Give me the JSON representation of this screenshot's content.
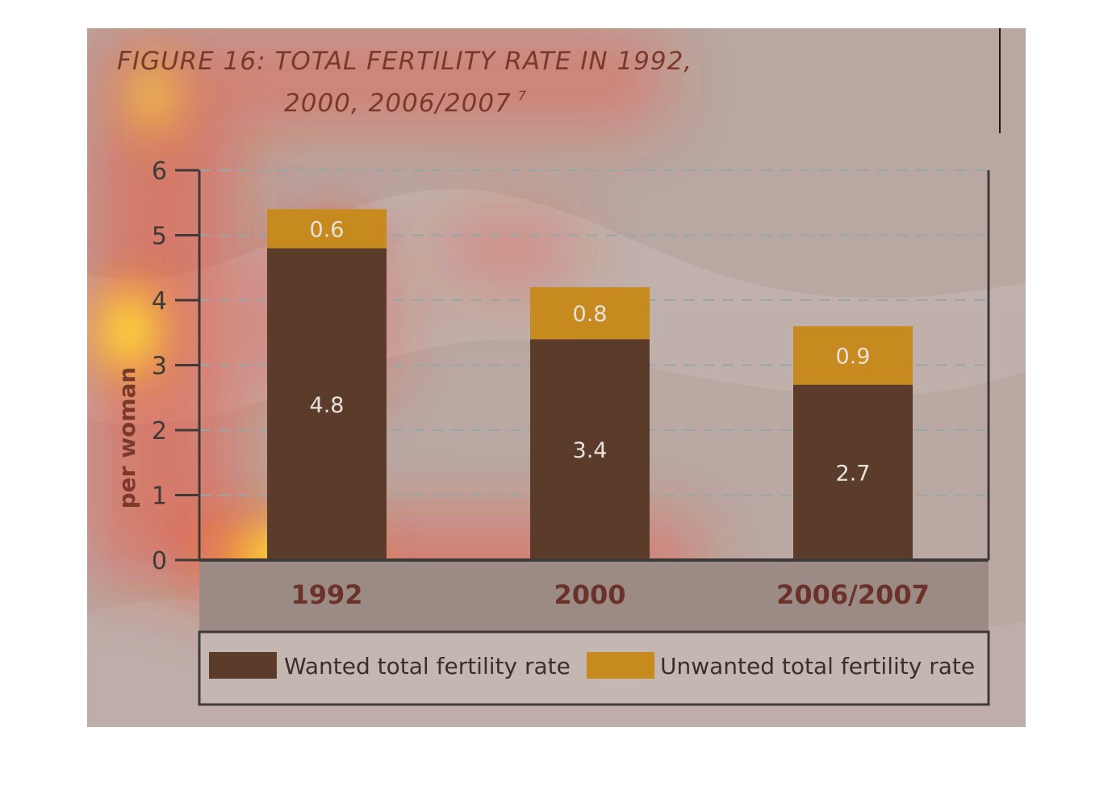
{
  "figure": {
    "title_line1": "FIGURE 16: TOTAL FERTILITY RATE IN 1992,",
    "title_line2": "2000, 2006/2007",
    "title_sup": "7"
  },
  "colors": {
    "panel_bg": "#b9a7a2",
    "wanted": "#5b3b29",
    "unwanted": "#c78a1e",
    "grid": "#9aa6a6",
    "axis": "#3f3a38",
    "title": "#7a3a2a",
    "label_light": "#e9e2dc"
  },
  "chart_data": {
    "type": "bar",
    "stacked": true,
    "categories": [
      "1992",
      "2000",
      "2006/2007"
    ],
    "series": [
      {
        "name": "Wanted total fertility rate",
        "values": [
          4.8,
          3.4,
          2.7
        ],
        "labels": [
          "4.8",
          "3.4",
          "2.7"
        ]
      },
      {
        "name": "Unwanted total fertility rate",
        "values": [
          0.6,
          0.8,
          0.9
        ],
        "labels": [
          "0.6",
          "0.8",
          "0.9"
        ]
      }
    ],
    "ylabel": "per woman",
    "ylim": [
      0,
      6
    ],
    "yticks": [
      "0",
      "1",
      "2",
      "3",
      "4",
      "5",
      "6"
    ],
    "grid": true,
    "legend": "bottom"
  }
}
